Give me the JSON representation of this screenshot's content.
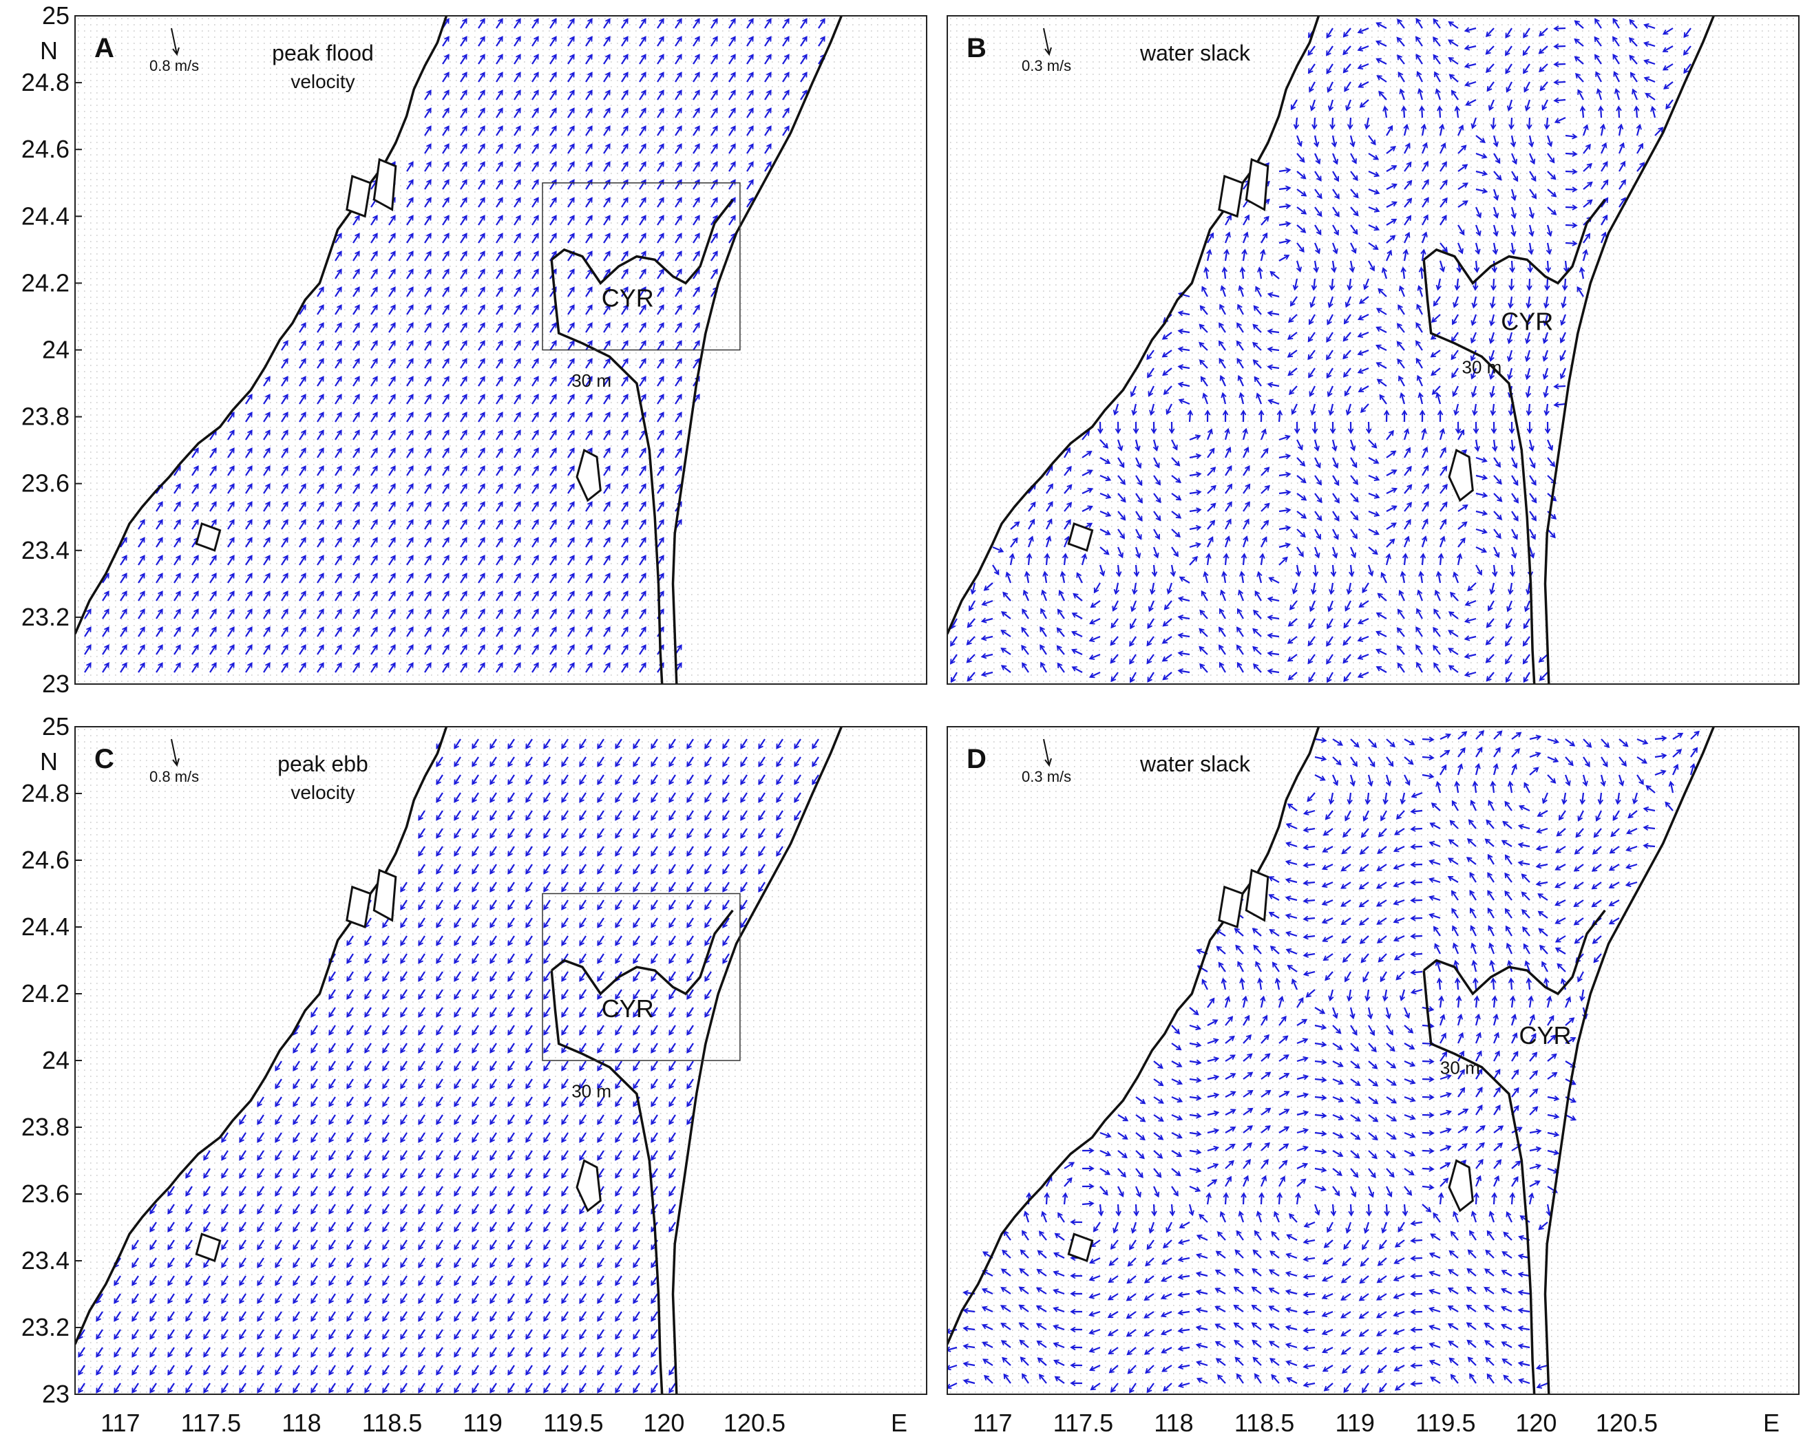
{
  "figure": {
    "x_axis": {
      "unit": "E",
      "ticks": [
        "117",
        "117.5",
        "118",
        "118.5",
        "119",
        "119.5",
        "120",
        "120.5"
      ]
    },
    "y_axis": {
      "unit": "N",
      "ticks": [
        "23",
        "23.2",
        "23.4",
        "23.6",
        "23.8",
        "24",
        "24.2",
        "24.4",
        "24.6",
        "24.8",
        "25"
      ]
    },
    "lon_range": [
      116.75,
      121.45
    ],
    "lat_range": [
      23,
      25
    ],
    "vector_color": "#1a1adc",
    "background_dot_color": "#c8c8c8",
    "coast_color": "#111111"
  },
  "panels": [
    {
      "letter": "A",
      "title": "peak flood",
      "subtitle": "velocity",
      "scale": "0.8 m/s",
      "region_label": "CYR",
      "isobath": "30 m",
      "has_box": true,
      "flow": "flood"
    },
    {
      "letter": "B",
      "title": "water slack",
      "subtitle": "",
      "scale": "0.3 m/s",
      "region_label": "CYR",
      "isobath": "30 m",
      "has_box": false,
      "flow": "slackB"
    },
    {
      "letter": "C",
      "title": "peak ebb",
      "subtitle": "velocity",
      "scale": "0.8 m/s",
      "region_label": "CYR",
      "isobath": "30 m",
      "has_box": true,
      "flow": "ebb"
    },
    {
      "letter": "D",
      "title": "water slack",
      "subtitle": "",
      "scale": "0.3 m/s",
      "region_label": "CYR",
      "isobath": "30 m",
      "has_box": false,
      "flow": "slackD"
    }
  ]
}
